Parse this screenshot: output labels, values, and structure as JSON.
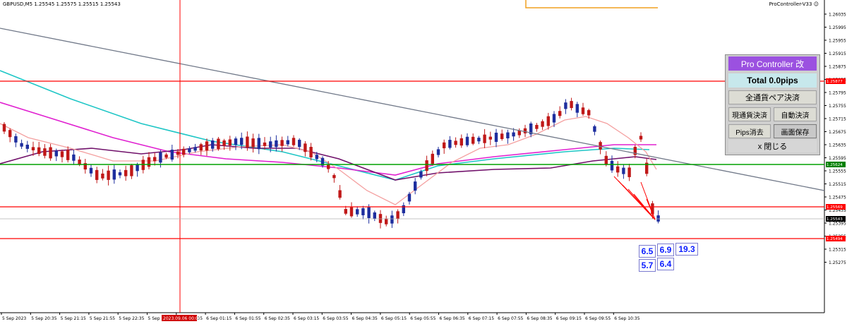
{
  "window": {
    "symbol_info": "GBPUSD,M5  1.25545  1.25575  1.25515  1.25543",
    "indicator_name": "ProController-V33 ☺"
  },
  "price_axis": {
    "labels": [
      "1.26035",
      "1.25995",
      "1.25955",
      "1.25915",
      "1.25875",
      "1.25835",
      "1.25795",
      "1.25755",
      "1.25715",
      "1.25675",
      "1.25635",
      "1.25595",
      "1.25555",
      "1.25515",
      "1.25475",
      "1.25435",
      "1.25395",
      "1.25355",
      "1.25315",
      "1.25275"
    ],
    "tags": [
      {
        "text": "1.25877",
        "color": "#ff0000"
      },
      {
        "text": "1.25624",
        "color": "#008000"
      },
      {
        "text": "1.25569",
        "color": "#ff0000"
      },
      {
        "text": "1.25543",
        "color": "#000000"
      },
      {
        "text": "1.25494",
        "color": "#ff0000"
      }
    ]
  },
  "time_axis": {
    "labels": [
      "5 Sep 2023",
      "5 Sep 20:35",
      "5 Sep 21:15",
      "5 Sep 21:55",
      "5 Sep 22:35",
      "5 Sep 2",
      "6 Sep 00:35",
      "6 Sep 01:15",
      "6 Sep 01:55",
      "6 Sep 02:35",
      "6 Sep 03:15",
      "6 Sep 03:55",
      "6 Sep 04:35",
      "6 Sep 05:15",
      "6 Sep 05:55",
      "6 Sep 06:35",
      "6 Sep 07:15",
      "6 Sep 07:55",
      "6 Sep 08:35",
      "6 Sep 09:15",
      "6 Sep 09:55",
      "6 Sep 10:35"
    ],
    "highlight_label": "2023.09.06 00:00"
  },
  "panel": {
    "title": "Pro Controller 改",
    "total": "Total   0.0pips",
    "close_all_pairs": "全通貨ペア決済",
    "close_current": "現通貨決済",
    "auto_close": "自動決済",
    "clear_pips": "Pips消去",
    "save_screen": "画面保存",
    "close_panel": "x 閉じる"
  },
  "pip_labels": [
    "6.5",
    "6.9",
    "19.3",
    "5.7",
    "6.4"
  ],
  "colors": {
    "bull": "#1e2e9e",
    "bear": "#c01818",
    "ma_cyan": "#1ec6c6",
    "ma_magenta": "#e020d0",
    "ma_purple": "#70106a",
    "ma_pink": "#f4a0a0",
    "trendline": "#707888",
    "hline_red": "#ff0000",
    "hline_green": "#00a000",
    "panel_title": "#9b51e0"
  }
}
